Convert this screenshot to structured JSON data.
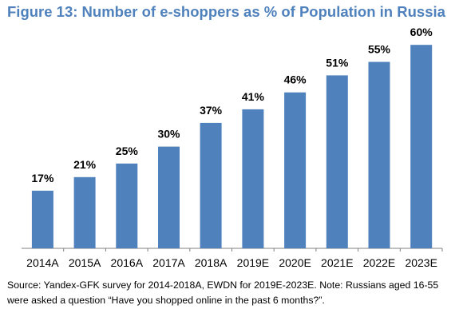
{
  "title": "Figure 13: Number of e-shoppers as % of Population in Russia",
  "source_note": "Source: Yandex-GFK survey for 2014-2018A, EWDN for 2019E-2023E. Note: Russians aged 16-55 were asked a question “Have you shopped online in the past 6 months?”.",
  "chart_data": {
    "type": "bar",
    "categories": [
      "2014A",
      "2015A",
      "2016A",
      "2017A",
      "2018A",
      "2019E",
      "2020E",
      "2021E",
      "2022E",
      "2023E"
    ],
    "values": [
      17,
      21,
      25,
      30,
      37,
      41,
      46,
      51,
      55,
      60
    ],
    "value_labels": [
      "17%",
      "21%",
      "25%",
      "30%",
      "37%",
      "41%",
      "46%",
      "51%",
      "55%",
      "60%"
    ],
    "title": "Figure 13: Number of e-shoppers as % of Population in Russia",
    "xlabel": "",
    "ylabel": "",
    "ylim": [
      0,
      65
    ],
    "grid": false,
    "legend": "none",
    "bar_color": "#4F81BD",
    "title_color": "#4F81BD"
  }
}
